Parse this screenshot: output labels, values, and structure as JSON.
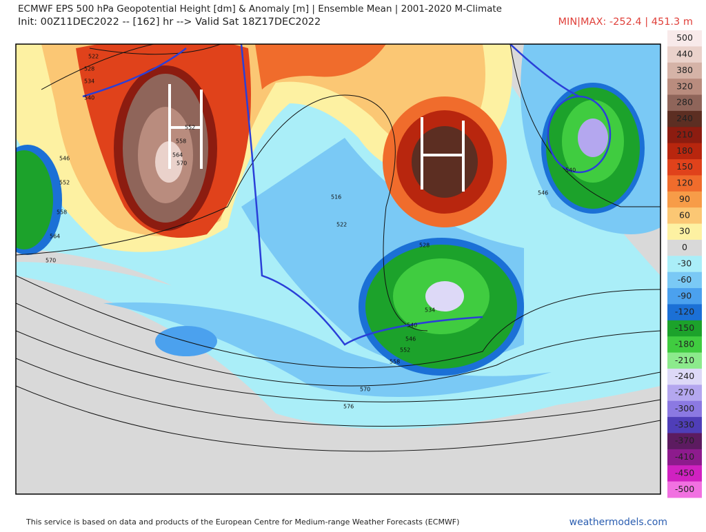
{
  "header": {
    "title": "ECMWF EPS 500 hPa Geopotential Height [dm] & Anomaly [m] | Ensemble Mean | 2001-2020 M-Climate",
    "subtitle": "Init: 00Z11DEC2022 -- [162] hr --> Valid Sat 18Z17DEC2022",
    "minmax": "MIN|MAX: -252.4 | 451.3 m"
  },
  "map": {
    "highs": [
      "H",
      "H"
    ],
    "contour_labels": [
      "522",
      "528",
      "534",
      "540",
      "546",
      "552",
      "558",
      "564",
      "570",
      "516",
      "522",
      "528",
      "534",
      "540",
      "546",
      "552",
      "558",
      "570",
      "576",
      "540",
      "546",
      "552",
      "558",
      "564",
      "570"
    ]
  },
  "colorbar": {
    "items": [
      {
        "label": "500",
        "color": "#f8eaea"
      },
      {
        "label": "440",
        "color": "#ead2cb"
      },
      {
        "label": "380",
        "color": "#d5b3a7"
      },
      {
        "label": "320",
        "color": "#b98c7e"
      },
      {
        "label": "280",
        "color": "#8f655a"
      },
      {
        "label": "240",
        "color": "#5c2e22"
      },
      {
        "label": "210",
        "color": "#8c1c10"
      },
      {
        "label": "180",
        "color": "#b8260e"
      },
      {
        "label": "150",
        "color": "#e0421b"
      },
      {
        "label": "120",
        "color": "#f06c2c"
      },
      {
        "label": "90",
        "color": "#f79c48"
      },
      {
        "label": "60",
        "color": "#fbc774"
      },
      {
        "label": "30",
        "color": "#fdf1a2"
      },
      {
        "label": "0",
        "color": "#d9d9d9"
      },
      {
        "label": "-30",
        "color": "#aaeef8"
      },
      {
        "label": "-60",
        "color": "#7ac9f5"
      },
      {
        "label": "-90",
        "color": "#4ba1ee"
      },
      {
        "label": "-120",
        "color": "#1b70d6"
      },
      {
        "label": "-150",
        "color": "#1ca22b"
      },
      {
        "label": "-180",
        "color": "#40cc40"
      },
      {
        "label": "-210",
        "color": "#8cea8c"
      },
      {
        "label": "-240",
        "color": "#ddd9f7"
      },
      {
        "label": "-270",
        "color": "#b4a7ef"
      },
      {
        "label": "-300",
        "color": "#8b79e2"
      },
      {
        "label": "-330",
        "color": "#4f3eb8"
      },
      {
        "label": "-370",
        "color": "#5c1b60"
      },
      {
        "label": "-410",
        "color": "#8d1b8d"
      },
      {
        "label": "-450",
        "color": "#d021c1"
      },
      {
        "label": "-500",
        "color": "#f171e1"
      }
    ]
  },
  "footer": {
    "notice": "This service is based on data and products of the European Centre for Medium-range Weather Forecasts (ECMWF)",
    "site": "weathermodels.com"
  }
}
